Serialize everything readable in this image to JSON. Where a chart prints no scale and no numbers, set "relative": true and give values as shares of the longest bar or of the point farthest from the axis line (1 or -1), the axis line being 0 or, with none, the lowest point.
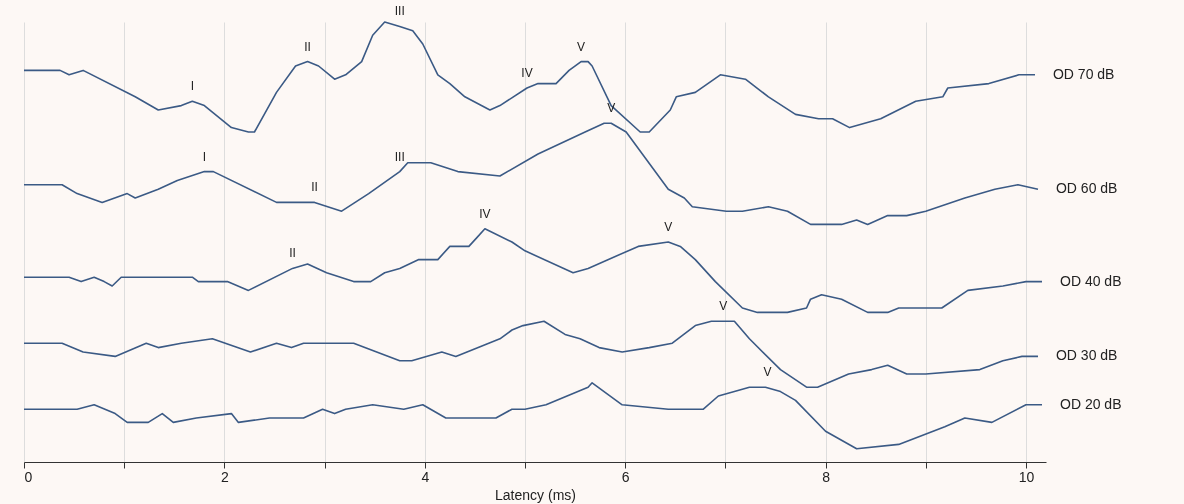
{
  "chart_data": {
    "type": "line",
    "relative": true,
    "xlabel": "Latency (ms)",
    "xlim": [
      0,
      10.2
    ],
    "xticks": [
      0,
      {
        "value": 1,
        "label": null
      },
      2,
      {
        "value": 3,
        "label": null
      },
      4,
      {
        "value": 5,
        "label": null
      },
      6,
      {
        "value": 7,
        "label": null
      },
      8,
      {
        "value": 9,
        "label": null
      },
      10
    ],
    "grid": "x",
    "legend": false,
    "marker": "none",
    "line_style": "solid",
    "series": [
      {
        "name": "OD 70 dB",
        "color": "#3b5a85",
        "x": [
          0,
          0.36,
          0.45,
          0.59,
          1.11,
          1.34,
          1.57,
          1.68,
          1.8,
          2.07,
          2.24,
          2.3,
          2.52,
          2.71,
          2.83,
          2.94,
          3.1,
          3.21,
          3.37,
          3.48,
          3.6,
          3.75,
          3.88,
          3.98,
          4.13,
          4.25,
          4.4,
          4.65,
          4.75,
          5.02,
          5.13,
          5.31,
          5.44,
          5.56,
          5.63,
          5.67,
          5.86,
          6.15,
          6.24,
          6.45,
          6.51,
          6.7,
          6.95,
          7.2,
          7.43,
          7.7,
          7.93,
          8.07,
          8.24,
          8.55,
          8.9,
          9.17,
          9.22,
          9.63,
          9.93,
          10.09
        ],
        "values": [
          0.89,
          0.89,
          0.88,
          0.89,
          0.83,
          0.8,
          0.81,
          0.82,
          0.81,
          0.76,
          0.75,
          0.75,
          0.84,
          0.9,
          0.91,
          0.9,
          0.87,
          0.88,
          0.91,
          0.97,
          1.0,
          0.99,
          0.98,
          0.95,
          0.88,
          0.86,
          0.83,
          0.8,
          0.81,
          0.85,
          0.86,
          0.86,
          0.89,
          0.91,
          0.91,
          0.9,
          0.81,
          0.75,
          0.75,
          0.8,
          0.83,
          0.84,
          0.88,
          0.87,
          0.83,
          0.79,
          0.78,
          0.78,
          0.76,
          0.78,
          0.82,
          0.83,
          0.85,
          0.86,
          0.88,
          0.88
        ]
      },
      {
        "name": "OD 60 dB",
        "color": "#3b5a85",
        "x": [
          0,
          0.38,
          0.53,
          0.78,
          1.03,
          1.11,
          1.34,
          1.53,
          1.8,
          1.89,
          2.52,
          2.9,
          3.17,
          3.44,
          3.75,
          3.83,
          4.06,
          4.33,
          4.75,
          5.13,
          5.6,
          5.79,
          5.86,
          6.01,
          6.43,
          6.59,
          6.67,
          7.01,
          7.17,
          7.43,
          7.62,
          7.85,
          8.16,
          8.31,
          8.42,
          8.62,
          8.81,
          9.0,
          9.39,
          9.69,
          9.92,
          10.12
        ],
        "values": [
          0.63,
          0.63,
          0.61,
          0.59,
          0.61,
          0.6,
          0.62,
          0.64,
          0.66,
          0.66,
          0.59,
          0.59,
          0.57,
          0.61,
          0.66,
          0.68,
          0.68,
          0.66,
          0.65,
          0.7,
          0.75,
          0.77,
          0.77,
          0.75,
          0.62,
          0.6,
          0.58,
          0.57,
          0.57,
          0.58,
          0.57,
          0.54,
          0.54,
          0.55,
          0.54,
          0.56,
          0.56,
          0.57,
          0.6,
          0.62,
          0.63,
          0.62
        ]
      },
      {
        "name": "OD 40 dB",
        "color": "#3b5a85",
        "x": [
          0,
          0.45,
          0.57,
          0.7,
          0.8,
          0.88,
          0.97,
          1.68,
          1.74,
          2.03,
          2.24,
          2.68,
          2.83,
          3.02,
          3.29,
          3.46,
          3.6,
          3.75,
          3.94,
          4.13,
          4.25,
          4.44,
          4.52,
          4.6,
          4.87,
          5.0,
          5.48,
          5.63,
          6.13,
          6.43,
          6.55,
          6.7,
          6.9,
          7.17,
          7.32,
          7.62,
          7.81,
          7.85,
          7.96,
          8.16,
          8.42,
          8.62,
          8.73,
          8.85,
          9.16,
          9.42,
          9.77,
          10.0,
          10.16
        ],
        "values": [
          0.42,
          0.42,
          0.41,
          0.42,
          0.41,
          0.4,
          0.42,
          0.42,
          0.41,
          0.41,
          0.39,
          0.44,
          0.45,
          0.43,
          0.41,
          0.41,
          0.43,
          0.44,
          0.46,
          0.46,
          0.49,
          0.49,
          0.51,
          0.53,
          0.5,
          0.48,
          0.43,
          0.44,
          0.49,
          0.5,
          0.49,
          0.46,
          0.41,
          0.35,
          0.34,
          0.34,
          0.35,
          0.37,
          0.38,
          0.37,
          0.34,
          0.34,
          0.35,
          0.35,
          0.35,
          0.39,
          0.4,
          0.41,
          0.41
        ]
      },
      {
        "name": "OD 30 dB",
        "color": "#3b5a85",
        "x": [
          0,
          0.38,
          0.59,
          0.91,
          1.22,
          1.34,
          1.57,
          1.88,
          2.26,
          2.52,
          2.67,
          2.79,
          3.29,
          3.75,
          3.87,
          4.17,
          4.31,
          4.75,
          4.87,
          4.98,
          5.19,
          5.4,
          5.55,
          5.74,
          5.97,
          6.24,
          6.47,
          6.7,
          6.86,
          7.09,
          7.24,
          7.55,
          7.81,
          7.92,
          8.23,
          8.46,
          8.62,
          8.81,
          9.0,
          9.54,
          9.77,
          9.96,
          10.12
        ],
        "values": [
          0.27,
          0.27,
          0.25,
          0.24,
          0.27,
          0.26,
          0.27,
          0.28,
          0.25,
          0.27,
          0.26,
          0.27,
          0.27,
          0.23,
          0.23,
          0.25,
          0.24,
          0.28,
          0.3,
          0.31,
          0.32,
          0.29,
          0.28,
          0.26,
          0.25,
          0.26,
          0.27,
          0.31,
          0.32,
          0.32,
          0.28,
          0.21,
          0.17,
          0.17,
          0.2,
          0.21,
          0.22,
          0.2,
          0.2,
          0.21,
          0.23,
          0.24,
          0.24
        ]
      },
      {
        "name": "OD 20 dB",
        "color": "#3b5a85",
        "x": [
          0,
          0.53,
          0.7,
          0.91,
          1.03,
          1.24,
          1.38,
          1.49,
          1.72,
          2.07,
          2.14,
          2.45,
          2.79,
          2.98,
          3.1,
          3.21,
          3.48,
          3.79,
          3.98,
          4.21,
          4.71,
          4.87,
          5.0,
          5.21,
          5.63,
          5.67,
          5.97,
          6.43,
          6.55,
          6.78,
          6.93,
          7.09,
          7.24,
          7.4,
          7.55,
          7.7,
          8.0,
          8.31,
          8.73,
          9.19,
          9.39,
          9.66,
          10.0,
          10.16
        ],
        "values": [
          0.12,
          0.12,
          0.13,
          0.11,
          0.09,
          0.09,
          0.11,
          0.09,
          0.1,
          0.11,
          0.09,
          0.1,
          0.1,
          0.12,
          0.11,
          0.12,
          0.13,
          0.12,
          0.13,
          0.1,
          0.1,
          0.12,
          0.12,
          0.13,
          0.17,
          0.18,
          0.13,
          0.12,
          0.12,
          0.12,
          0.15,
          0.16,
          0.17,
          0.17,
          0.16,
          0.14,
          0.07,
          0.03,
          0.04,
          0.08,
          0.1,
          0.09,
          0.13,
          0.13
        ]
      }
    ],
    "annotations": [
      {
        "text": "I",
        "x": 1.68,
        "y": 0.82
      },
      {
        "text": "II",
        "x": 2.83,
        "y": 0.91
      },
      {
        "text": "III",
        "x": 3.75,
        "y": 0.99
      },
      {
        "text": "IV",
        "x": 5.02,
        "y": 0.85
      },
      {
        "text": "V",
        "x": 5.56,
        "y": 0.91
      },
      {
        "text": "I",
        "x": 1.8,
        "y": 0.66
      },
      {
        "text": "II",
        "x": 2.9,
        "y": 0.59
      },
      {
        "text": "III",
        "x": 3.75,
        "y": 0.66
      },
      {
        "text": "V",
        "x": 5.86,
        "y": 0.77
      },
      {
        "text": "II",
        "x": 2.68,
        "y": 0.44
      },
      {
        "text": "IV",
        "x": 4.6,
        "y": 0.53
      },
      {
        "text": "V",
        "x": 6.43,
        "y": 0.5
      },
      {
        "text": "V",
        "x": 6.98,
        "y": 0.32
      },
      {
        "text": "V",
        "x": 7.42,
        "y": 0.17
      }
    ]
  }
}
